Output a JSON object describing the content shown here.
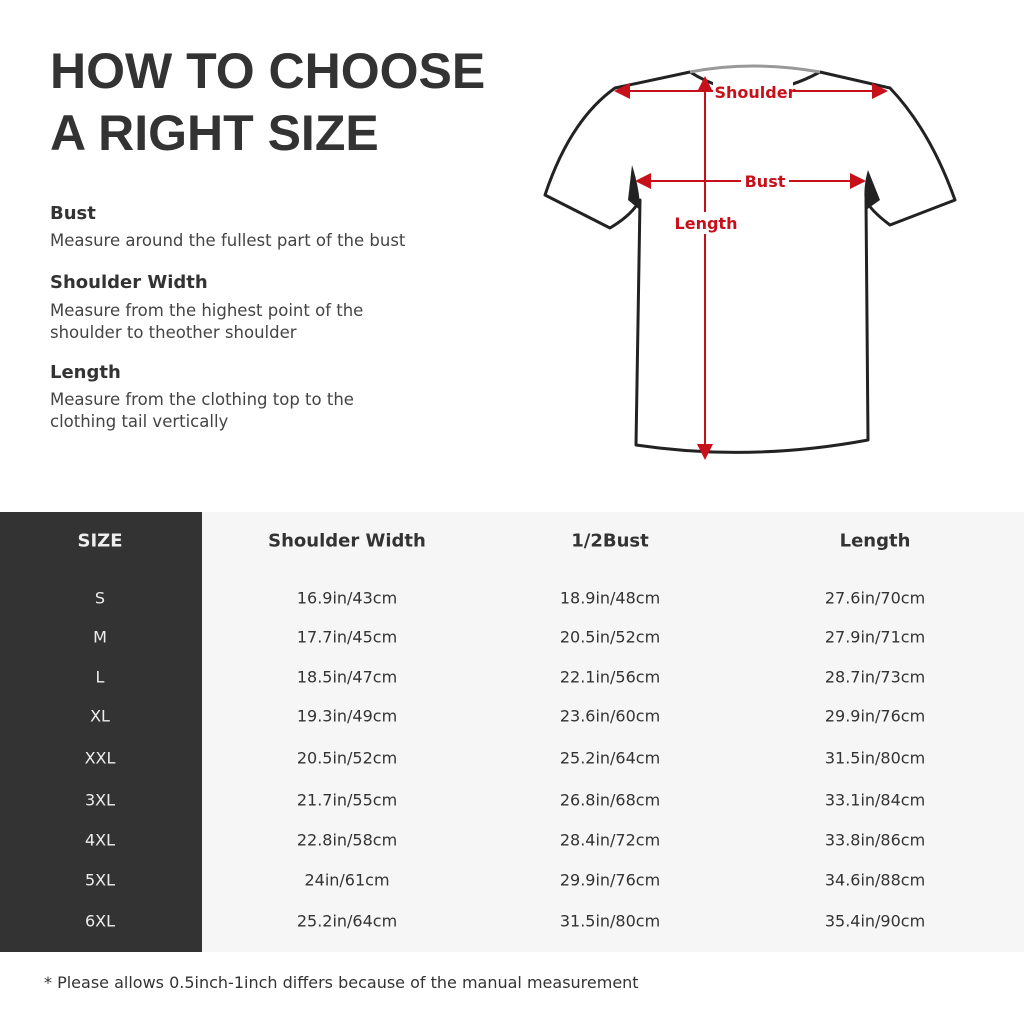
{
  "title_lines": [
    "HOW TO CHOOSE",
    "A RIGHT SIZE"
  ],
  "guide": [
    {
      "term": "Bust",
      "description": "Measure around the fullest part of the bust"
    },
    {
      "term": "Shoulder Width",
      "description": "Measure from the highest point of the shoulder to theother shoulder"
    },
    {
      "term": "Length",
      "description": "Measure from the clothing top to the clothing tail vertically"
    }
  ],
  "diagram": {
    "labels": {
      "shoulder": "Shoulder",
      "bust": "Bust",
      "length": "Length"
    },
    "arrow_color": "#c8101a"
  },
  "table": {
    "headers": [
      "SIZE",
      "Shoulder Width",
      "1/2Bust",
      "Length"
    ],
    "rows": [
      [
        "S",
        "16.9in/43cm",
        "18.9in/48cm",
        "27.6in/70cm"
      ],
      [
        "M",
        "17.7in/45cm",
        "20.5in/52cm",
        "27.9in/71cm"
      ],
      [
        "L",
        "18.5in/47cm",
        "22.1in/56cm",
        "28.7in/73cm"
      ],
      [
        "XL",
        "19.3in/49cm",
        "23.6in/60cm",
        "29.9in/76cm"
      ],
      [
        "XXL",
        "20.5in/52cm",
        "25.2in/64cm",
        "31.5in/80cm"
      ],
      [
        "3XL",
        "21.7in/55cm",
        "26.8in/68cm",
        "33.1in/84cm"
      ],
      [
        "4XL",
        "22.8in/58cm",
        "28.4in/72cm",
        "33.8in/86cm"
      ],
      [
        "5XL",
        "24in/61cm",
        "29.9in/76cm",
        "34.6in/88cm"
      ],
      [
        "6XL",
        "25.2in/64cm",
        "31.5in/80cm",
        "35.4in/90cm"
      ]
    ]
  },
  "note": "* Please allows 0.5inch-1inch differs because of the  manual measurement"
}
